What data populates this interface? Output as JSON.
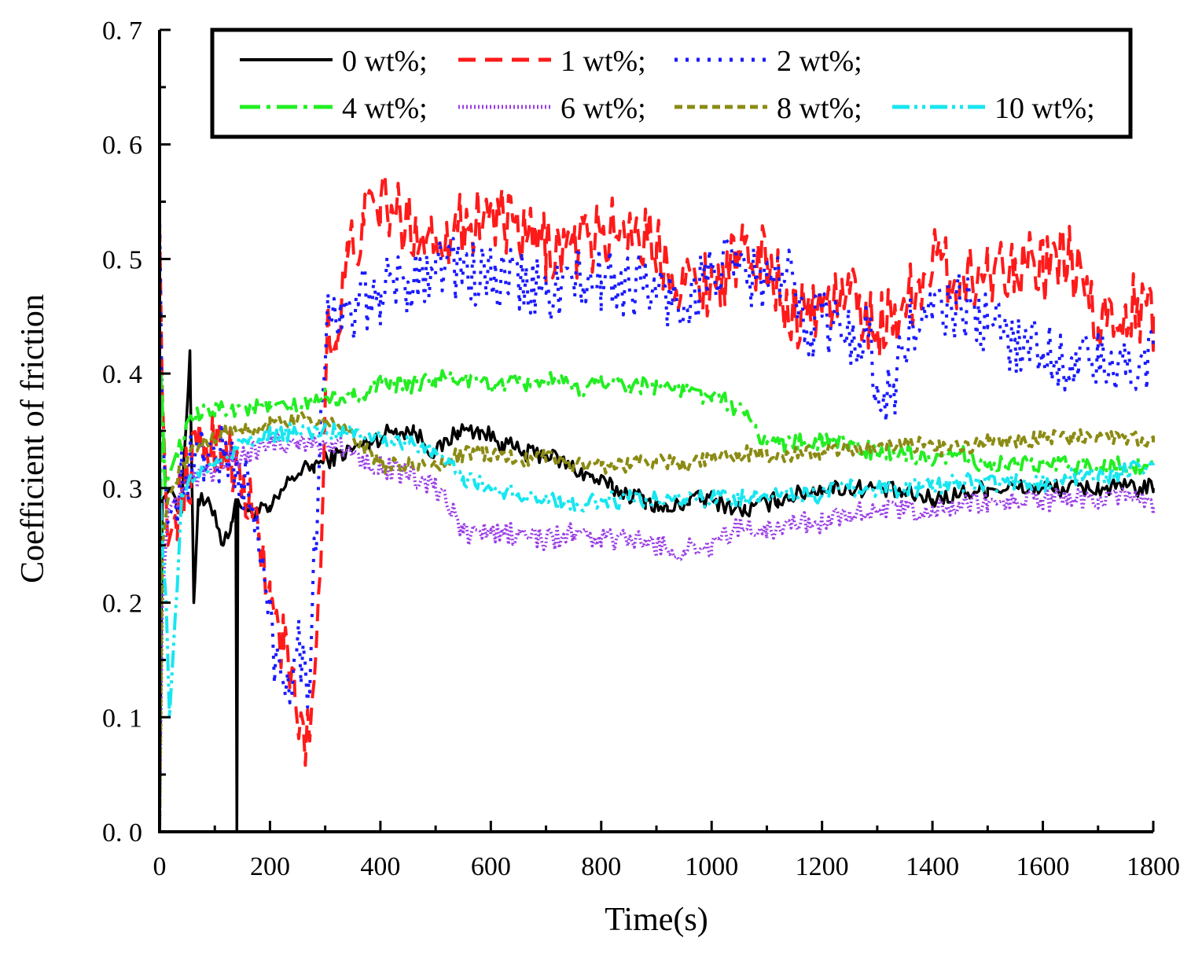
{
  "chart_data": {
    "type": "line",
    "title": "",
    "xlabel": "Time(s)",
    "ylabel": "Coefficient of friction",
    "xlim": [
      0,
      1800
    ],
    "ylim": [
      0.0,
      0.7
    ],
    "xticks": [
      0,
      200,
      400,
      600,
      800,
      1000,
      1200,
      1400,
      1600,
      1800
    ],
    "xtick_labels": [
      "0",
      "200",
      "400",
      "600",
      "800",
      "1000",
      "1200",
      "1400",
      "1600",
      "1800"
    ],
    "yticks": [
      0.0,
      0.1,
      0.2,
      0.3,
      0.4,
      0.5,
      0.6,
      0.7
    ],
    "ytick_labels": [
      "0. 0",
      "0. 1",
      "0. 2",
      "0. 3",
      "0. 4",
      "0. 5",
      "0. 6",
      "0. 7"
    ],
    "grid": false,
    "legend_position": "top-right",
    "series": [
      {
        "name": "0 wt%;",
        "color": "#000000",
        "dash": "solid",
        "noise": 0.008,
        "points": [
          [
            0,
            0.0
          ],
          [
            5,
            0.29
          ],
          [
            20,
            0.3
          ],
          [
            40,
            0.28
          ],
          [
            55,
            0.42
          ],
          [
            62,
            0.2
          ],
          [
            70,
            0.29
          ],
          [
            100,
            0.28
          ],
          [
            115,
            0.25
          ],
          [
            130,
            0.27
          ],
          [
            138,
            0.29
          ],
          [
            140,
            0.0
          ],
          [
            142,
            0.29
          ],
          [
            160,
            0.28
          ],
          [
            200,
            0.28
          ],
          [
            240,
            0.31
          ],
          [
            280,
            0.32
          ],
          [
            330,
            0.33
          ],
          [
            380,
            0.34
          ],
          [
            420,
            0.35
          ],
          [
            460,
            0.35
          ],
          [
            500,
            0.33
          ],
          [
            540,
            0.35
          ],
          [
            580,
            0.35
          ],
          [
            620,
            0.34
          ],
          [
            660,
            0.33
          ],
          [
            700,
            0.33
          ],
          [
            740,
            0.32
          ],
          [
            780,
            0.31
          ],
          [
            820,
            0.3
          ],
          [
            880,
            0.29
          ],
          [
            920,
            0.28
          ],
          [
            960,
            0.29
          ],
          [
            1000,
            0.29
          ],
          [
            1060,
            0.28
          ],
          [
            1120,
            0.29
          ],
          [
            1200,
            0.3
          ],
          [
            1300,
            0.3
          ],
          [
            1400,
            0.29
          ],
          [
            1500,
            0.3
          ],
          [
            1600,
            0.3
          ],
          [
            1700,
            0.3
          ],
          [
            1800,
            0.3
          ]
        ]
      },
      {
        "name": "1 wt%;",
        "color": "#ff1a1a",
        "dash": "22,12",
        "noise": 0.03,
        "points": [
          [
            0,
            0.53
          ],
          [
            5,
            0.38
          ],
          [
            15,
            0.25
          ],
          [
            40,
            0.3
          ],
          [
            80,
            0.34
          ],
          [
            120,
            0.34
          ],
          [
            150,
            0.3
          ],
          [
            180,
            0.26
          ],
          [
            200,
            0.2
          ],
          [
            225,
            0.16
          ],
          [
            245,
            0.12
          ],
          [
            265,
            0.07
          ],
          [
            280,
            0.13
          ],
          [
            295,
            0.28
          ],
          [
            305,
            0.46
          ],
          [
            320,
            0.42
          ],
          [
            340,
            0.5
          ],
          [
            370,
            0.53
          ],
          [
            400,
            0.55
          ],
          [
            450,
            0.53
          ],
          [
            500,
            0.52
          ],
          [
            550,
            0.53
          ],
          [
            600,
            0.54
          ],
          [
            650,
            0.52
          ],
          [
            700,
            0.51
          ],
          [
            750,
            0.51
          ],
          [
            800,
            0.52
          ],
          [
            850,
            0.53
          ],
          [
            900,
            0.51
          ],
          [
            950,
            0.48
          ],
          [
            1000,
            0.48
          ],
          [
            1050,
            0.5
          ],
          [
            1100,
            0.5
          ],
          [
            1150,
            0.45
          ],
          [
            1200,
            0.46
          ],
          [
            1250,
            0.47
          ],
          [
            1300,
            0.44
          ],
          [
            1350,
            0.46
          ],
          [
            1400,
            0.5
          ],
          [
            1450,
            0.48
          ],
          [
            1500,
            0.49
          ],
          [
            1550,
            0.5
          ],
          [
            1600,
            0.49
          ],
          [
            1650,
            0.5
          ],
          [
            1700,
            0.44
          ],
          [
            1750,
            0.46
          ],
          [
            1800,
            0.45
          ]
        ]
      },
      {
        "name": "2 wt%;",
        "color": "#1a1aff",
        "dash": "4,10",
        "noise": 0.03,
        "points": [
          [
            0,
            0.54
          ],
          [
            5,
            0.35
          ],
          [
            15,
            0.27
          ],
          [
            40,
            0.31
          ],
          [
            80,
            0.33
          ],
          [
            120,
            0.33
          ],
          [
            160,
            0.3
          ],
          [
            190,
            0.22
          ],
          [
            210,
            0.15
          ],
          [
            230,
            0.13
          ],
          [
            250,
            0.17
          ],
          [
            270,
            0.13
          ],
          [
            290,
            0.33
          ],
          [
            305,
            0.47
          ],
          [
            330,
            0.44
          ],
          [
            360,
            0.46
          ],
          [
            400,
            0.47
          ],
          [
            450,
            0.48
          ],
          [
            500,
            0.5
          ],
          [
            550,
            0.49
          ],
          [
            600,
            0.48
          ],
          [
            650,
            0.48
          ],
          [
            700,
            0.47
          ],
          [
            750,
            0.48
          ],
          [
            800,
            0.48
          ],
          [
            850,
            0.48
          ],
          [
            900,
            0.47
          ],
          [
            950,
            0.46
          ],
          [
            1000,
            0.49
          ],
          [
            1050,
            0.49
          ],
          [
            1100,
            0.48
          ],
          [
            1150,
            0.48
          ],
          [
            1180,
            0.44
          ],
          [
            1200,
            0.45
          ],
          [
            1250,
            0.43
          ],
          [
            1280,
            0.44
          ],
          [
            1310,
            0.37
          ],
          [
            1330,
            0.39
          ],
          [
            1360,
            0.44
          ],
          [
            1400,
            0.45
          ],
          [
            1450,
            0.46
          ],
          [
            1500,
            0.44
          ],
          [
            1550,
            0.43
          ],
          [
            1600,
            0.42
          ],
          [
            1650,
            0.41
          ],
          [
            1700,
            0.41
          ],
          [
            1750,
            0.4
          ],
          [
            1800,
            0.42
          ]
        ]
      },
      {
        "name": "4 wt%;",
        "color": "#22ee22",
        "dash": "26,8,5,8",
        "noise": 0.008,
        "points": [
          [
            0,
            0.0
          ],
          [
            3,
            0.4
          ],
          [
            10,
            0.3
          ],
          [
            30,
            0.33
          ],
          [
            60,
            0.36
          ],
          [
            100,
            0.37
          ],
          [
            150,
            0.37
          ],
          [
            200,
            0.37
          ],
          [
            250,
            0.37
          ],
          [
            300,
            0.38
          ],
          [
            350,
            0.38
          ],
          [
            400,
            0.39
          ],
          [
            450,
            0.39
          ],
          [
            500,
            0.395
          ],
          [
            550,
            0.395
          ],
          [
            600,
            0.39
          ],
          [
            650,
            0.39
          ],
          [
            700,
            0.395
          ],
          [
            760,
            0.385
          ],
          [
            800,
            0.395
          ],
          [
            850,
            0.39
          ],
          [
            900,
            0.39
          ],
          [
            950,
            0.385
          ],
          [
            1000,
            0.38
          ],
          [
            1050,
            0.37
          ],
          [
            1080,
            0.35
          ],
          [
            1100,
            0.34
          ],
          [
            1150,
            0.34
          ],
          [
            1200,
            0.34
          ],
          [
            1250,
            0.34
          ],
          [
            1300,
            0.33
          ],
          [
            1350,
            0.33
          ],
          [
            1400,
            0.32
          ],
          [
            1450,
            0.33
          ],
          [
            1500,
            0.32
          ],
          [
            1550,
            0.32
          ],
          [
            1600,
            0.32
          ],
          [
            1650,
            0.32
          ],
          [
            1700,
            0.32
          ],
          [
            1750,
            0.32
          ],
          [
            1800,
            0.32
          ]
        ]
      },
      {
        "name": "6 wt%;",
        "color": "#9a3ee6",
        "dash": "2,3",
        "noise": 0.01,
        "points": [
          [
            0,
            0.0
          ],
          [
            5,
            0.2
          ],
          [
            15,
            0.28
          ],
          [
            40,
            0.3
          ],
          [
            80,
            0.31
          ],
          [
            120,
            0.32
          ],
          [
            160,
            0.33
          ],
          [
            200,
            0.34
          ],
          [
            250,
            0.34
          ],
          [
            300,
            0.34
          ],
          [
            350,
            0.33
          ],
          [
            400,
            0.32
          ],
          [
            450,
            0.31
          ],
          [
            500,
            0.3
          ],
          [
            530,
            0.28
          ],
          [
            550,
            0.26
          ],
          [
            600,
            0.26
          ],
          [
            650,
            0.26
          ],
          [
            700,
            0.255
          ],
          [
            750,
            0.26
          ],
          [
            800,
            0.255
          ],
          [
            850,
            0.255
          ],
          [
            900,
            0.25
          ],
          [
            950,
            0.245
          ],
          [
            1000,
            0.25
          ],
          [
            1050,
            0.265
          ],
          [
            1100,
            0.265
          ],
          [
            1150,
            0.27
          ],
          [
            1200,
            0.27
          ],
          [
            1250,
            0.28
          ],
          [
            1300,
            0.28
          ],
          [
            1350,
            0.28
          ],
          [
            1400,
            0.28
          ],
          [
            1450,
            0.285
          ],
          [
            1500,
            0.285
          ],
          [
            1550,
            0.29
          ],
          [
            1600,
            0.29
          ],
          [
            1650,
            0.29
          ],
          [
            1700,
            0.29
          ],
          [
            1750,
            0.29
          ],
          [
            1800,
            0.285
          ]
        ]
      },
      {
        "name": "8 wt%;",
        "color": "#8b8b14",
        "dash": "10,6",
        "noise": 0.007,
        "points": [
          [
            0,
            0.0
          ],
          [
            5,
            0.25
          ],
          [
            15,
            0.29
          ],
          [
            40,
            0.32
          ],
          [
            80,
            0.34
          ],
          [
            120,
            0.35
          ],
          [
            160,
            0.35
          ],
          [
            200,
            0.355
          ],
          [
            250,
            0.36
          ],
          [
            300,
            0.36
          ],
          [
            350,
            0.345
          ],
          [
            400,
            0.32
          ],
          [
            450,
            0.32
          ],
          [
            500,
            0.32
          ],
          [
            550,
            0.33
          ],
          [
            600,
            0.33
          ],
          [
            650,
            0.325
          ],
          [
            700,
            0.33
          ],
          [
            750,
            0.32
          ],
          [
            800,
            0.32
          ],
          [
            850,
            0.32
          ],
          [
            900,
            0.325
          ],
          [
            950,
            0.32
          ],
          [
            1000,
            0.325
          ],
          [
            1050,
            0.33
          ],
          [
            1100,
            0.33
          ],
          [
            1150,
            0.33
          ],
          [
            1200,
            0.33
          ],
          [
            1250,
            0.335
          ],
          [
            1300,
            0.335
          ],
          [
            1350,
            0.34
          ],
          [
            1400,
            0.335
          ],
          [
            1450,
            0.335
          ],
          [
            1500,
            0.34
          ],
          [
            1550,
            0.34
          ],
          [
            1600,
            0.345
          ],
          [
            1650,
            0.345
          ],
          [
            1700,
            0.345
          ],
          [
            1750,
            0.345
          ],
          [
            1800,
            0.34
          ]
        ]
      },
      {
        "name": "10 wt%;",
        "color": "#17e6f0",
        "dash": "22,6,4,6,4,6",
        "noise": 0.008,
        "points": [
          [
            0,
            0.32
          ],
          [
            5,
            0.25
          ],
          [
            12,
            0.2
          ],
          [
            18,
            0.1
          ],
          [
            25,
            0.16
          ],
          [
            40,
            0.29
          ],
          [
            60,
            0.31
          ],
          [
            100,
            0.32
          ],
          [
            150,
            0.34
          ],
          [
            200,
            0.345
          ],
          [
            250,
            0.35
          ],
          [
            300,
            0.35
          ],
          [
            350,
            0.35
          ],
          [
            400,
            0.345
          ],
          [
            450,
            0.34
          ],
          [
            500,
            0.33
          ],
          [
            550,
            0.31
          ],
          [
            600,
            0.3
          ],
          [
            650,
            0.295
          ],
          [
            700,
            0.29
          ],
          [
            750,
            0.285
          ],
          [
            800,
            0.29
          ],
          [
            850,
            0.29
          ],
          [
            900,
            0.29
          ],
          [
            950,
            0.29
          ],
          [
            1000,
            0.29
          ],
          [
            1050,
            0.29
          ],
          [
            1100,
            0.295
          ],
          [
            1150,
            0.295
          ],
          [
            1200,
            0.295
          ],
          [
            1250,
            0.3
          ],
          [
            1300,
            0.3
          ],
          [
            1350,
            0.3
          ],
          [
            1400,
            0.3
          ],
          [
            1450,
            0.305
          ],
          [
            1500,
            0.305
          ],
          [
            1550,
            0.305
          ],
          [
            1600,
            0.305
          ],
          [
            1650,
            0.31
          ],
          [
            1700,
            0.31
          ],
          [
            1750,
            0.315
          ],
          [
            1800,
            0.32
          ]
        ]
      }
    ]
  }
}
